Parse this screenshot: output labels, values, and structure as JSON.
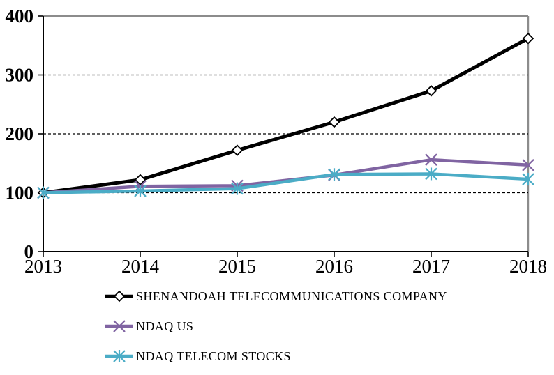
{
  "chart_data": {
    "type": "line",
    "title": "",
    "x": [
      2013,
      2014,
      2015,
      2016,
      2017,
      2018
    ],
    "x_ticks": [
      "2013",
      "2014",
      "2015",
      "2016",
      "2017",
      "2018"
    ],
    "y_ticks": [
      0,
      100,
      200,
      300,
      400
    ],
    "ylim": [
      0,
      400
    ],
    "grid": "horizontal dashed at 100, 200, 300; solid gray top border at 400",
    "legend_position": "below-chart-left",
    "series": [
      {
        "name": "SHENANDOAH TELECOMMUNICATIONS COMPANY",
        "values": [
          100,
          122,
          172,
          220,
          273,
          362
        ],
        "color": "#000000",
        "marker": "diamond"
      },
      {
        "name": "NDAQ US",
        "values": [
          100,
          111,
          112,
          130,
          156,
          147
        ],
        "color": "#8064A2",
        "marker": "x"
      },
      {
        "name": "NDAQ TELECOM STOCKS",
        "values": [
          100,
          103,
          107,
          131,
          132,
          123
        ],
        "color": "#4BACC6",
        "marker": "star"
      }
    ],
    "colors": {
      "axis": "#000000",
      "gridline": "#000000",
      "plot_border": "#8c8c8c",
      "background": "#ffffff",
      "marker_fill_diamond": "#ffffff"
    }
  }
}
